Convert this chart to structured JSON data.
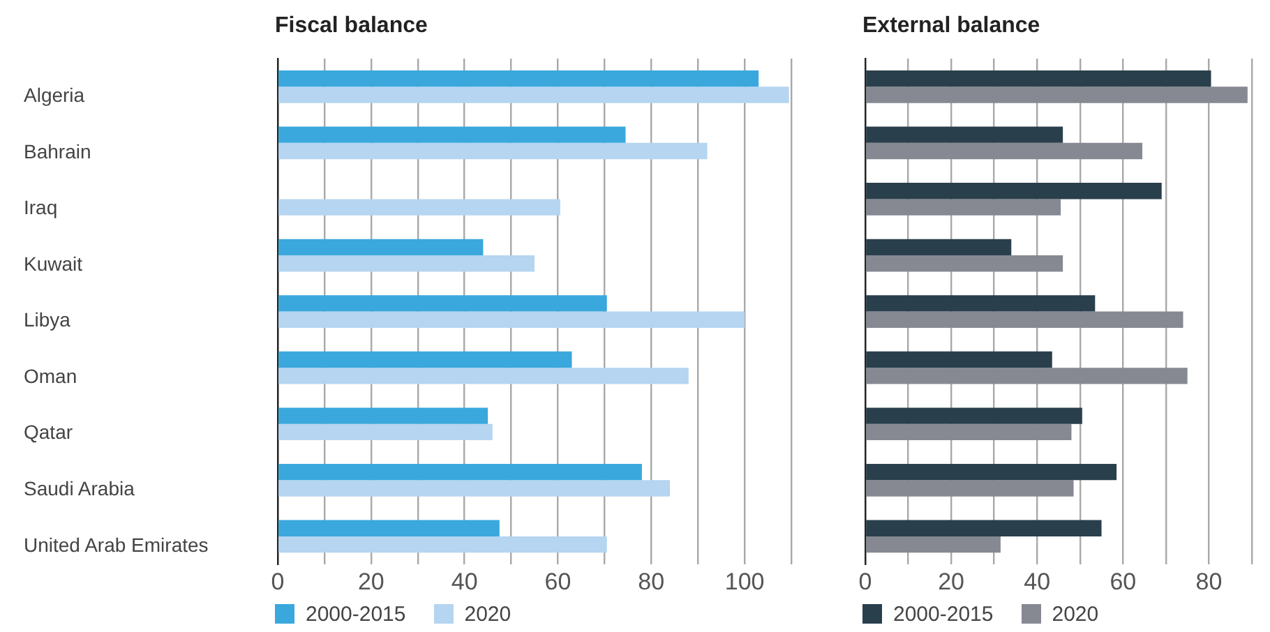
{
  "chart_data": [
    {
      "type": "bar",
      "orientation": "horizontal",
      "title": "Fiscal balance",
      "categories": [
        "Algeria",
        "Bahrain",
        "Iraq",
        "Kuwait",
        "Libya",
        "Oman",
        "Qatar",
        "Saudi Arabia",
        "United Arab Emirates"
      ],
      "series": [
        {
          "name": "2000-2015",
          "color": "#3aa8dc",
          "values": [
            103,
            74.5,
            null,
            44,
            70.5,
            63,
            45,
            78,
            47.5
          ]
        },
        {
          "name": "2020",
          "color": "#b5d5f0",
          "values": [
            109.5,
            92,
            60.5,
            55,
            100,
            88,
            46,
            84,
            70.5
          ]
        }
      ],
      "xlim": [
        0,
        110
      ],
      "xticks": [
        0,
        {
          "value": 10,
          "label": null
        },
        20,
        {
          "value": 30,
          "label": null
        },
        40,
        {
          "value": 50,
          "label": null
        },
        60,
        {
          "value": 70,
          "label": null
        },
        80,
        {
          "value": 90,
          "label": null
        },
        100,
        {
          "value": 110,
          "label": null
        }
      ],
      "grid": "x",
      "legend": "bottom"
    },
    {
      "type": "bar",
      "orientation": "horizontal",
      "title": "External balance",
      "categories": [
        null,
        null,
        null,
        null,
        null,
        null,
        null,
        null,
        null
      ],
      "series": [
        {
          "name": "2000-2015",
          "color": "#2a3f4c",
          "values": [
            80.5,
            46,
            69,
            34,
            53.5,
            43.5,
            50.5,
            58.5,
            55
          ]
        },
        {
          "name": "2020",
          "color": "#868992",
          "values": [
            89,
            64.5,
            45.5,
            46,
            74,
            75,
            48,
            48.5,
            31.5
          ]
        }
      ],
      "xlim": [
        0,
        90
      ],
      "xticks": [
        0,
        {
          "value": 10,
          "label": null
        },
        20,
        {
          "value": 30,
          "label": null
        },
        40,
        {
          "value": 50,
          "label": null
        },
        60,
        {
          "value": 70,
          "label": null
        },
        80,
        {
          "value": 90,
          "label": null
        }
      ],
      "grid": "x",
      "legend": "bottom"
    }
  ]
}
